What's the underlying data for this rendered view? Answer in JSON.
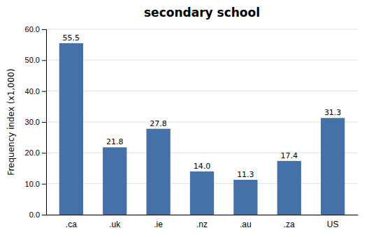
{
  "chart_data": {
    "type": "bar",
    "title": "secondary school",
    "categories": [
      ".ca",
      ".uk",
      ".ie",
      ".nz",
      ".au",
      ".za",
      "US"
    ],
    "values": [
      55.5,
      21.8,
      27.8,
      14.0,
      11.3,
      17.4,
      31.3
    ],
    "value_labels": [
      "55.5",
      "21.8",
      "27.8",
      "14.0",
      "11.3",
      "17.4",
      "31.3"
    ],
    "color": "#4472a8",
    "ylabel": "Frequency index (x1,000)",
    "ylim": [
      0,
      60
    ],
    "yticks": [
      {
        "value": 0,
        "label": "0.0"
      },
      {
        "value": 10,
        "label": "10.0"
      },
      {
        "value": 20,
        "label": "20.0"
      },
      {
        "value": 30,
        "label": "30.0"
      },
      {
        "value": 40,
        "label": "40.0"
      },
      {
        "value": 50,
        "label": "50.0"
      },
      {
        "value": 60,
        "label": "60.0"
      }
    ],
    "grid": true,
    "data_labels": true
  }
}
